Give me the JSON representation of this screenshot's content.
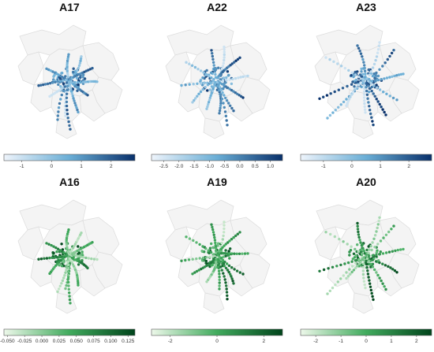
{
  "panels": [
    {
      "id": "p1",
      "title": "A17",
      "scheme": "blue",
      "domain": [
        -1.6,
        2.8
      ],
      "ticks": [
        "-1",
        "0",
        "1",
        "2"
      ],
      "tick_values": [
        -1,
        0,
        1,
        2
      ]
    },
    {
      "id": "p2",
      "title": "A22",
      "scheme": "blue",
      "domain": [
        -2.9,
        1.4
      ],
      "ticks": [
        "-2.5",
        "-2.0",
        "-1.5",
        "-1.0",
        "-0.5",
        "0.0",
        "0.5",
        "1.0"
      ],
      "tick_values": [
        -2.5,
        -2.0,
        -1.5,
        -1.0,
        -0.5,
        0.0,
        0.5,
        1.0
      ]
    },
    {
      "id": "p3",
      "title": "A23",
      "scheme": "blue",
      "domain": [
        -1.8,
        2.8
      ],
      "ticks": [
        "-1",
        "0",
        "1",
        "2"
      ],
      "tick_values": [
        -1,
        0,
        1,
        2
      ]
    },
    {
      "id": "p4",
      "title": "A16",
      "scheme": "green",
      "domain": [
        -0.055,
        0.135
      ],
      "ticks": [
        "-0.050",
        "-0.025",
        "0.000",
        "0.025",
        "0.050",
        "0.075",
        "0.100",
        "0.125"
      ],
      "tick_values": [
        -0.05,
        -0.025,
        0.0,
        0.025,
        0.05,
        0.075,
        0.1,
        0.125
      ]
    },
    {
      "id": "p5",
      "title": "A19",
      "scheme": "green",
      "domain": [
        -2.8,
        2.8
      ],
      "ticks": [
        "-2",
        "0",
        "2"
      ],
      "tick_values": [
        -2,
        0,
        2
      ]
    },
    {
      "id": "p6",
      "title": "A20",
      "scheme": "green",
      "domain": [
        -2.6,
        2.6
      ],
      "ticks": [
        "-2",
        "-1",
        "0",
        "1",
        "2"
      ],
      "tick_values": [
        -2,
        -1,
        0,
        1,
        2
      ]
    }
  ],
  "colors": {
    "blue_low": "#eef4fb",
    "blue_mid": "#6aaed6",
    "blue_high": "#08306b",
    "green_low": "#edf8ea",
    "green_mid": "#41ab5d",
    "green_high": "#00441b",
    "region_fill": "#f4f4f4",
    "region_stroke": "#dcdcdc"
  }
}
